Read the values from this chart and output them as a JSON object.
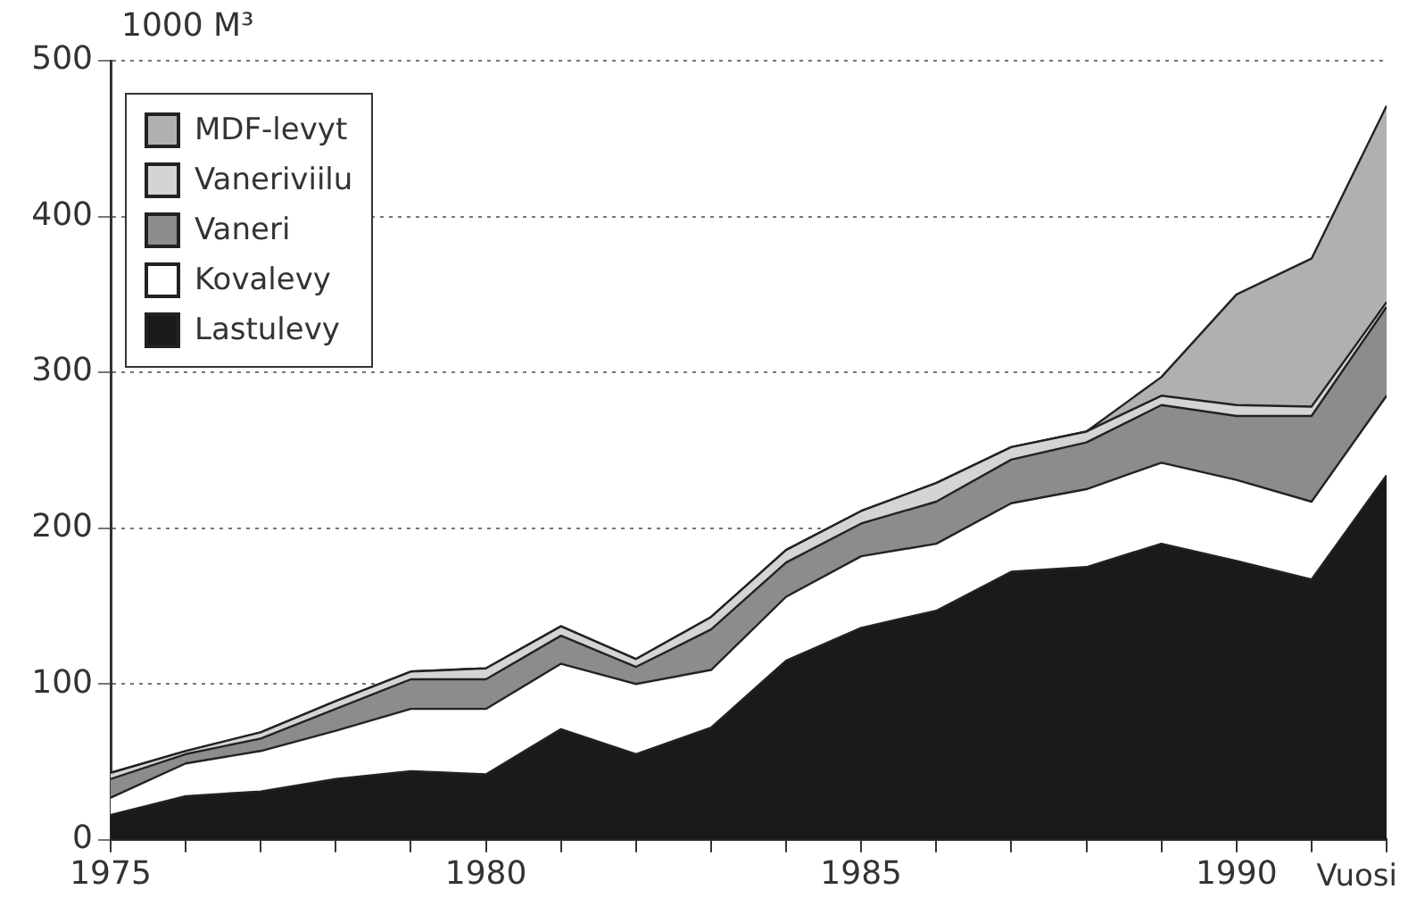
{
  "chart_data": {
    "type": "area",
    "stacked": true,
    "ylabel": "1000 M³",
    "xlabel": "Vuosi",
    "x": [
      1975,
      1976,
      1977,
      1978,
      1979,
      1980,
      1981,
      1982,
      1983,
      1984,
      1985,
      1986,
      1987,
      1988,
      1989,
      1990,
      1991,
      1992
    ],
    "xlim": [
      1975,
      1992
    ],
    "xticks": [
      1975,
      {
        "value": 1976,
        "label": null
      },
      {
        "value": 1977,
        "label": null
      },
      {
        "value": 1978,
        "label": null
      },
      {
        "value": 1979,
        "label": null
      },
      1980,
      {
        "value": 1981,
        "label": null
      },
      {
        "value": 1982,
        "label": null
      },
      {
        "value": 1983,
        "label": null
      },
      {
        "value": 1984,
        "label": null
      },
      1985,
      {
        "value": 1986,
        "label": null
      },
      {
        "value": 1987,
        "label": null
      },
      {
        "value": 1988,
        "label": null
      },
      {
        "value": 1989,
        "label": null
      },
      1990,
      {
        "value": 1991,
        "label": null
      },
      {
        "value": 1992,
        "label": null
      }
    ],
    "ylim": [
      0,
      500
    ],
    "yticks": [
      0,
      100,
      200,
      300,
      400,
      500
    ],
    "grid": "y",
    "legend": "top left",
    "marker": "none",
    "series": [
      {
        "name": "Lastulevy",
        "color": "#1a1a1a",
        "values": [
          16,
          28,
          31,
          39,
          44,
          42,
          71,
          55,
          72,
          115,
          136,
          147,
          172,
          175,
          190,
          179,
          167,
          234
        ]
      },
      {
        "name": "Kovalevy",
        "color": "#ffffff",
        "values": [
          11,
          21,
          26,
          31,
          40,
          42,
          42,
          45,
          37,
          41,
          46,
          43,
          44,
          50,
          52,
          52,
          50,
          51
        ]
      },
      {
        "name": "Vaneri",
        "color": "#8c8c8c",
        "values": [
          12,
          6,
          8,
          14,
          19,
          19,
          18,
          11,
          26,
          22,
          21,
          27,
          28,
          30,
          37,
          41,
          55,
          57
        ]
      },
      {
        "name": "Vaneriviilu",
        "color": "#d4d4d4",
        "values": [
          4,
          2,
          4,
          5,
          5,
          7,
          6,
          5,
          8,
          8,
          8,
          12,
          8,
          7,
          6,
          7,
          6,
          3
        ]
      },
      {
        "name": "MDF-levyt",
        "color": "#b0b0b0",
        "values": [
          0,
          0,
          0,
          0,
          0,
          0,
          0,
          0,
          0,
          0,
          0,
          0,
          0,
          0,
          12,
          71,
          95,
          126
        ]
      }
    ]
  }
}
